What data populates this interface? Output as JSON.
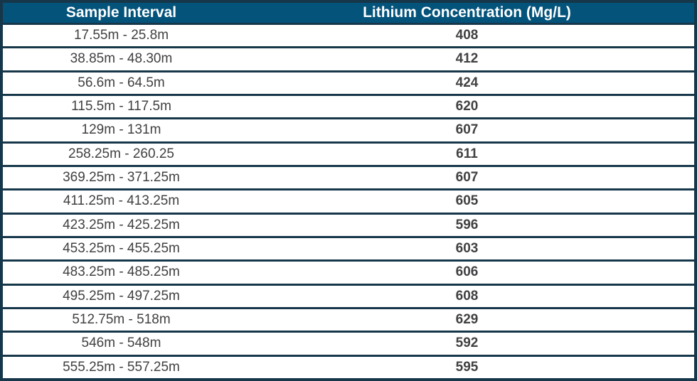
{
  "table": {
    "columns": [
      {
        "label": "Sample Interval"
      },
      {
        "label": "Lithium Concentration (Mg/L)"
      }
    ],
    "rows": [
      {
        "interval": "17.55m - 25.8m",
        "concentration": "408"
      },
      {
        "interval": "38.85m - 48.30m",
        "concentration": "412"
      },
      {
        "interval": "56.6m - 64.5m",
        "concentration": "424"
      },
      {
        "interval": "115.5m - 117.5m",
        "concentration": "620"
      },
      {
        "interval": "129m - 131m",
        "concentration": "607"
      },
      {
        "interval": "258.25m - 260.25",
        "concentration": "611"
      },
      {
        "interval": "369.25m - 371.25m",
        "concentration": "607"
      },
      {
        "interval": "411.25m - 413.25m",
        "concentration": "605"
      },
      {
        "interval": "423.25m - 425.25m",
        "concentration": "596"
      },
      {
        "interval": "453.25m - 455.25m",
        "concentration": "603"
      },
      {
        "interval": "483.25m - 485.25m",
        "concentration": "606"
      },
      {
        "interval": "495.25m - 497.25m",
        "concentration": "608"
      },
      {
        "interval": "512.75m - 518m",
        "concentration": "629"
      },
      {
        "interval": "546m - 548m",
        "concentration": "592"
      },
      {
        "interval": "555.25m - 557.25m",
        "concentration": "595"
      }
    ]
  },
  "chart_data": {
    "type": "table",
    "title": "",
    "columns": [
      "Sample Interval",
      "Lithium Concentration (Mg/L)"
    ],
    "rows": [
      [
        "17.55m - 25.8m",
        408
      ],
      [
        "38.85m - 48.30m",
        412
      ],
      [
        "56.6m - 64.5m",
        424
      ],
      [
        "115.5m - 117.5m",
        620
      ],
      [
        "129m - 131m",
        607
      ],
      [
        "258.25m - 260.25",
        611
      ],
      [
        "369.25m - 371.25m",
        607
      ],
      [
        "411.25m - 413.25m",
        605
      ],
      [
        "423.25m - 425.25m",
        596
      ],
      [
        "453.25m - 455.25m",
        603
      ],
      [
        "483.25m - 485.25m",
        606
      ],
      [
        "495.25m - 497.25m",
        608
      ],
      [
        "512.75m - 518m",
        629
      ],
      [
        "546m - 548m",
        592
      ],
      [
        "555.25m - 557.25m",
        595
      ]
    ]
  },
  "colors": {
    "header_bg": "#04537b",
    "header_text": "#ffffff",
    "border": "#16374a",
    "cell_text": "#414042",
    "row_bg": "#ffffff"
  }
}
